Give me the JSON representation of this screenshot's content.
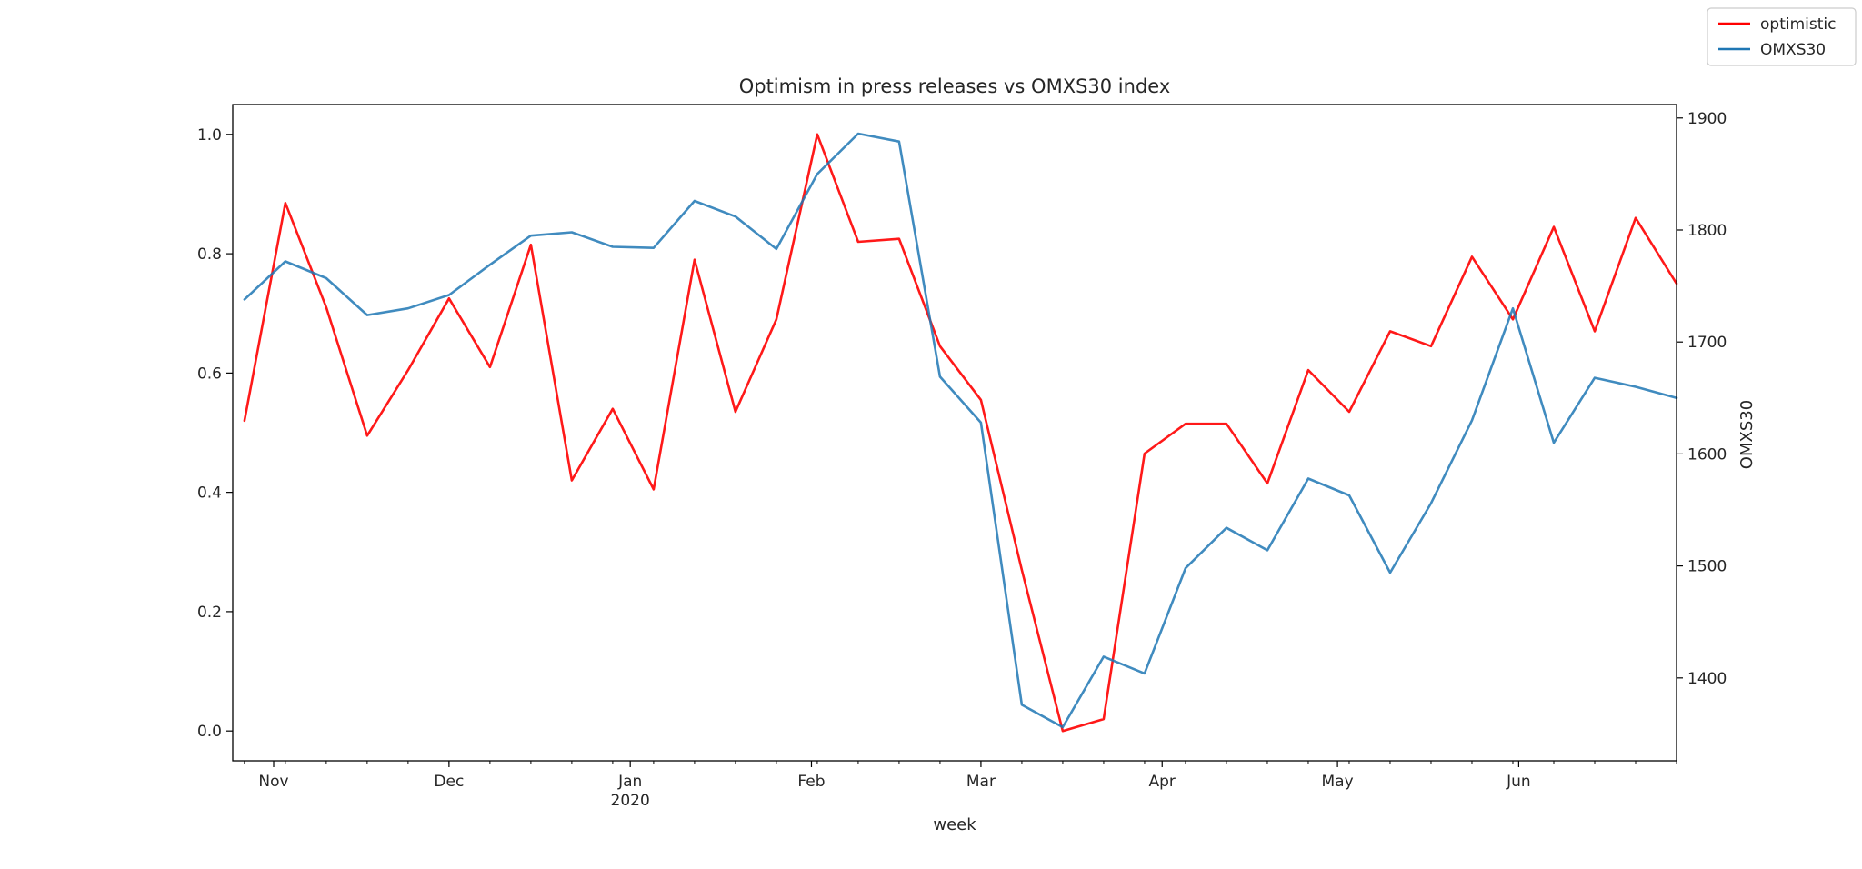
{
  "chart_data": {
    "type": "line",
    "title": "Optimism in press releases vs OMXS30 index",
    "xlabel": "week",
    "ylabel_left": "",
    "ylabel_right": "OMXS30",
    "x_ticks": [
      {
        "date": "2019-11-01",
        "label": "Nov"
      },
      {
        "date": "2019-12-01",
        "label": "Dec"
      },
      {
        "date": "2020-01-01",
        "label": "Jan",
        "sublabel": "2020"
      },
      {
        "date": "2020-02-01",
        "label": "Feb"
      },
      {
        "date": "2020-03-01",
        "label": "Mar"
      },
      {
        "date": "2020-04-01",
        "label": "Apr"
      },
      {
        "date": "2020-05-01",
        "label": "May"
      },
      {
        "date": "2020-06-01",
        "label": "Jun"
      }
    ],
    "xlim": [
      "2019-10-25",
      "2020-06-28"
    ],
    "ylim_left": [
      -0.05,
      1.05
    ],
    "yticks_left": [
      "0.0",
      "0.2",
      "0.4",
      "0.6",
      "0.8",
      "1.0"
    ],
    "ylim_right": [
      1326,
      1912
    ],
    "yticks_right": [
      "1400",
      "1500",
      "1600",
      "1700",
      "1800",
      "1900"
    ],
    "legend": {
      "position": "top-right",
      "entries": [
        "optimistic",
        "OMXS30"
      ]
    },
    "grid": false,
    "x": [
      "2019-10-27",
      "2019-11-03",
      "2019-11-10",
      "2019-11-17",
      "2019-11-24",
      "2019-12-01",
      "2019-12-08",
      "2019-12-15",
      "2019-12-22",
      "2019-12-29",
      "2020-01-05",
      "2020-01-12",
      "2020-01-19",
      "2020-01-26",
      "2020-02-02",
      "2020-02-09",
      "2020-02-16",
      "2020-02-23",
      "2020-03-01",
      "2020-03-08",
      "2020-03-15",
      "2020-03-22",
      "2020-03-29",
      "2020-04-05",
      "2020-04-12",
      "2020-04-19",
      "2020-04-26",
      "2020-05-03",
      "2020-05-10",
      "2020-05-17",
      "2020-05-24",
      "2020-05-31",
      "2020-06-07",
      "2020-06-14",
      "2020-06-21",
      "2020-06-28"
    ],
    "series": [
      {
        "name": "optimistic",
        "axis": "left",
        "color": "#ff0000",
        "values": [
          0.52,
          0.885,
          0.71,
          0.495,
          0.605,
          0.725,
          0.61,
          0.815,
          0.42,
          0.54,
          0.405,
          0.79,
          0.535,
          0.69,
          1.0,
          0.82,
          0.825,
          0.645,
          0.555,
          0.27,
          0.0,
          0.02,
          0.465,
          0.515,
          0.515,
          0.415,
          0.605,
          0.535,
          0.67,
          0.645,
          0.795,
          0.69,
          0.845,
          0.67,
          0.86,
          0.75
        ]
      },
      {
        "name": "OMXS30",
        "axis": "right",
        "color": "#1f77b4",
        "values": [
          1738,
          1772,
          1757,
          1724,
          1730,
          1742,
          1769,
          1795,
          1798,
          1785,
          1784,
          1826,
          1812,
          1783,
          1850,
          1886,
          1879,
          1669,
          1628,
          1376,
          1356,
          1419,
          1404,
          1498,
          1534,
          1514,
          1578,
          1563,
          1494,
          1556,
          1630,
          1730,
          1610,
          1668,
          1660,
          1650
        ]
      }
    ]
  }
}
